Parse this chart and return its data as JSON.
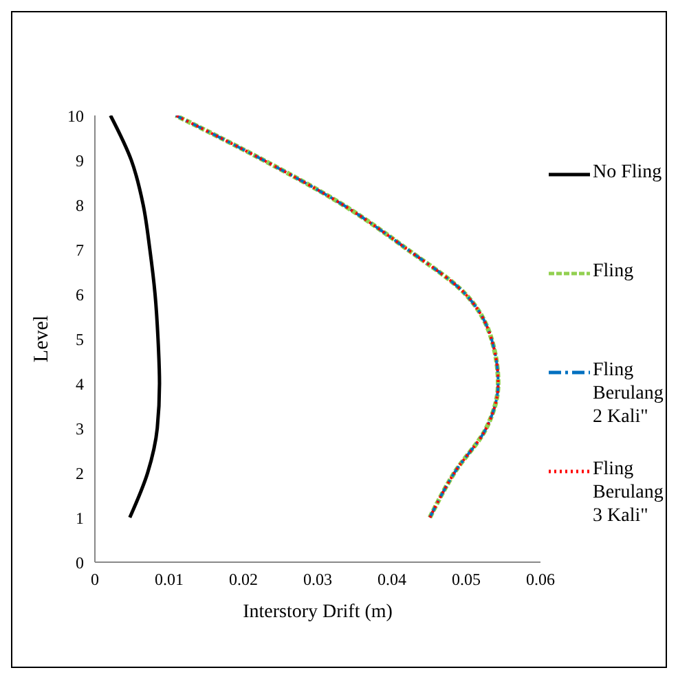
{
  "chart_data": {
    "type": "line",
    "orientation": "horizontal",
    "xlabel": "Interstory Drift (m)",
    "ylabel": "Level",
    "x": [
      1,
      2,
      3,
      4,
      5,
      6,
      7,
      8,
      9,
      10
    ],
    "series": [
      {
        "name": "No Fling",
        "color": "#000000",
        "line_style": "solid",
        "values": [
          0.0047,
          0.0071,
          0.0084,
          0.0087,
          0.0085,
          0.0081,
          0.0074,
          0.0065,
          0.0049,
          0.0021
        ]
      },
      {
        "name": "Fling",
        "color": "#92d050",
        "line_style": "dashed",
        "values": [
          0.0451,
          0.0484,
          0.0527,
          0.0543,
          0.0534,
          0.0499,
          0.0421,
          0.0334,
          0.0227,
          0.0109
        ]
      },
      {
        "name": "Fling Berulang 2 Kali\"",
        "color": "#0070c0",
        "line_style": "dashdot",
        "values": [
          0.0451,
          0.0484,
          0.0527,
          0.0543,
          0.0534,
          0.0499,
          0.0421,
          0.0334,
          0.0227,
          0.0109
        ]
      },
      {
        "name": "Fling Berulang 3 Kali\"",
        "color": "#ff0000",
        "line_style": "dotted",
        "values": [
          0.0451,
          0.0484,
          0.0527,
          0.0543,
          0.0534,
          0.0499,
          0.0421,
          0.0334,
          0.0227,
          0.0109
        ]
      }
    ],
    "xlim": [
      0,
      0.06
    ],
    "xticks": [
      0,
      0.01,
      0.02,
      0.03,
      0.04,
      0.05,
      0.06
    ],
    "ylim": [
      0,
      10
    ],
    "yticks": [
      0,
      1,
      2,
      3,
      4,
      5,
      6,
      7,
      8,
      9,
      10
    ],
    "grid": false,
    "legend": "right",
    "marker": "none"
  }
}
